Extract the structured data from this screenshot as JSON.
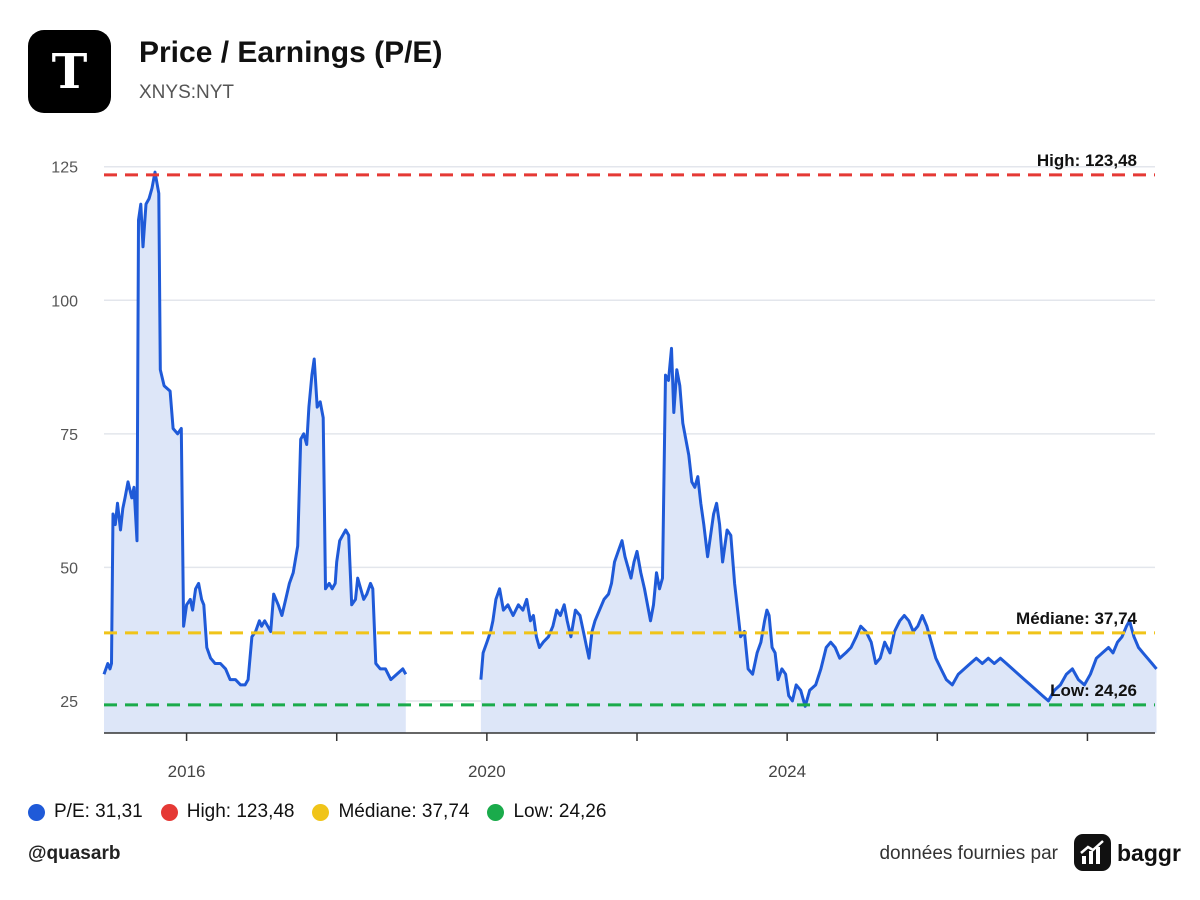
{
  "header": {
    "title": "Price / Earnings (P/E)",
    "subtitle": "XNYS:NYT",
    "logo_icon": "nyt-t-logo"
  },
  "legend": [
    {
      "label": "P/E: 31,31",
      "color": "#1f5ad8"
    },
    {
      "label": "High: 123,48",
      "color": "#e53935"
    },
    {
      "label": "Médiane: 37,74",
      "color": "#f0c419"
    },
    {
      "label": "Low: 24,26",
      "color": "#1aab4b"
    }
  ],
  "footer": {
    "handle": "@quasarb",
    "source": "données fournies par",
    "brand": "baggr",
    "brand_icon": "baggr-chart-icon"
  },
  "chart_data": {
    "type": "area",
    "series": [
      {
        "name": "P/E",
        "color": "#1f5ad8",
        "fill": "#dde6f8",
        "segments": [
          [
            [
              2014.9,
              30
            ],
            [
              2014.95,
              32
            ],
            [
              2014.98,
              31
            ],
            [
              2015.0,
              32
            ],
            [
              2015.02,
              60
            ],
            [
              2015.05,
              58
            ],
            [
              2015.08,
              62
            ],
            [
              2015.12,
              57
            ],
            [
              2015.15,
              61
            ],
            [
              2015.18,
              63
            ],
            [
              2015.22,
              66
            ],
            [
              2015.27,
              63
            ],
            [
              2015.3,
              65
            ],
            [
              2015.34,
              55
            ],
            [
              2015.36,
              115
            ],
            [
              2015.39,
              118
            ],
            [
              2015.42,
              110
            ],
            [
              2015.46,
              118
            ],
            [
              2015.5,
              119
            ],
            [
              2015.54,
              121
            ],
            [
              2015.58,
              124
            ],
            [
              2015.63,
              120
            ],
            [
              2015.65,
              87
            ],
            [
              2015.7,
              84
            ],
            [
              2015.78,
              83
            ],
            [
              2015.82,
              76
            ],
            [
              2015.88,
              75
            ],
            [
              2015.93,
              76
            ],
            [
              2015.96,
              39
            ],
            [
              2016.0,
              43
            ],
            [
              2016.05,
              44
            ],
            [
              2016.08,
              42
            ],
            [
              2016.12,
              46
            ],
            [
              2016.16,
              47
            ],
            [
              2016.2,
              44
            ],
            [
              2016.23,
              43
            ],
            [
              2016.27,
              35
            ],
            [
              2016.32,
              33
            ],
            [
              2016.38,
              32
            ],
            [
              2016.45,
              32
            ],
            [
              2016.52,
              31
            ],
            [
              2016.58,
              29
            ],
            [
              2016.65,
              29
            ],
            [
              2016.72,
              28
            ],
            [
              2016.78,
              28
            ],
            [
              2016.82,
              29
            ],
            [
              2016.87,
              37
            ],
            [
              2016.92,
              38
            ],
            [
              2016.97,
              40
            ],
            [
              2017.0,
              39
            ],
            [
              2017.04,
              40
            ],
            [
              2017.08,
              39
            ],
            [
              2017.12,
              38
            ],
            [
              2017.16,
              45
            ],
            [
              2017.22,
              43
            ],
            [
              2017.27,
              41
            ],
            [
              2017.32,
              44
            ],
            [
              2017.37,
              47
            ],
            [
              2017.42,
              49
            ],
            [
              2017.48,
              54
            ],
            [
              2017.52,
              74
            ],
            [
              2017.56,
              75
            ],
            [
              2017.6,
              73
            ],
            [
              2017.63,
              80
            ],
            [
              2017.67,
              86
            ],
            [
              2017.7,
              89
            ],
            [
              2017.74,
              80
            ],
            [
              2017.78,
              81
            ],
            [
              2017.82,
              78
            ],
            [
              2017.85,
              46
            ],
            [
              2017.9,
              47
            ],
            [
              2017.94,
              46
            ],
            [
              2017.98,
              47
            ],
            [
              2018.0,
              51
            ],
            [
              2018.04,
              55
            ],
            [
              2018.08,
              56
            ],
            [
              2018.12,
              57
            ],
            [
              2018.16,
              56
            ],
            [
              2018.2,
              43
            ],
            [
              2018.25,
              44
            ],
            [
              2018.28,
              48
            ],
            [
              2018.32,
              46
            ],
            [
              2018.36,
              44
            ],
            [
              2018.4,
              45
            ],
            [
              2018.45,
              47
            ],
            [
              2018.48,
              46
            ],
            [
              2018.52,
              32
            ],
            [
              2018.58,
              31
            ],
            [
              2018.65,
              31
            ],
            [
              2018.72,
              29
            ],
            [
              2018.8,
              30
            ],
            [
              2018.88,
              31
            ],
            [
              2018.92,
              30
            ]
          ],
          [
            [
              2019.92,
              29
            ],
            [
              2019.95,
              34
            ],
            [
              2020.0,
              36
            ],
            [
              2020.05,
              38
            ],
            [
              2020.08,
              40
            ],
            [
              2020.12,
              44
            ],
            [
              2020.17,
              46
            ],
            [
              2020.22,
              42
            ],
            [
              2020.28,
              43
            ],
            [
              2020.35,
              41
            ],
            [
              2020.42,
              43
            ],
            [
              2020.48,
              42
            ],
            [
              2020.53,
              44
            ],
            [
              2020.58,
              40
            ],
            [
              2020.62,
              41
            ],
            [
              2020.66,
              37
            ],
            [
              2020.7,
              35
            ],
            [
              2020.75,
              36
            ],
            [
              2020.82,
              37
            ],
            [
              2020.88,
              39
            ],
            [
              2020.93,
              42
            ],
            [
              2020.98,
              41
            ],
            [
              2021.03,
              43
            ],
            [
              2021.07,
              40
            ],
            [
              2021.12,
              37
            ],
            [
              2021.18,
              42
            ],
            [
              2021.24,
              41
            ],
            [
              2021.3,
              37
            ],
            [
              2021.33,
              35
            ],
            [
              2021.36,
              33
            ],
            [
              2021.4,
              38
            ],
            [
              2021.44,
              40
            ],
            [
              2021.5,
              42
            ],
            [
              2021.56,
              44
            ],
            [
              2021.62,
              45
            ],
            [
              2021.66,
              47
            ],
            [
              2021.7,
              51
            ],
            [
              2021.75,
              53
            ],
            [
              2021.8,
              55
            ],
            [
              2021.84,
              52
            ],
            [
              2021.88,
              50
            ],
            [
              2021.92,
              48
            ],
            [
              2021.96,
              51
            ],
            [
              2022.0,
              53
            ],
            [
              2022.05,
              49
            ],
            [
              2022.1,
              46
            ],
            [
              2022.14,
              43
            ],
            [
              2022.18,
              40
            ],
            [
              2022.22,
              43
            ],
            [
              2022.26,
              49
            ],
            [
              2022.3,
              46
            ],
            [
              2022.34,
              48
            ],
            [
              2022.38,
              86
            ],
            [
              2022.42,
              85
            ],
            [
              2022.46,
              91
            ],
            [
              2022.49,
              79
            ],
            [
              2022.53,
              87
            ],
            [
              2022.57,
              84
            ],
            [
              2022.61,
              77
            ],
            [
              2022.65,
              74
            ],
            [
              2022.69,
              71
            ],
            [
              2022.73,
              66
            ],
            [
              2022.77,
              65
            ],
            [
              2022.81,
              67
            ],
            [
              2022.85,
              62
            ],
            [
              2022.89,
              58
            ],
            [
              2022.94,
              52
            ],
            [
              2022.98,
              56
            ],
            [
              2023.02,
              60
            ],
            [
              2023.06,
              62
            ],
            [
              2023.1,
              58
            ],
            [
              2023.14,
              51
            ],
            [
              2023.2,
              57
            ],
            [
              2023.25,
              56
            ],
            [
              2023.3,
              47
            ],
            [
              2023.34,
              42
            ],
            [
              2023.38,
              37
            ],
            [
              2023.43,
              38
            ],
            [
              2023.48,
              31
            ],
            [
              2023.54,
              30
            ],
            [
              2023.6,
              34
            ],
            [
              2023.65,
              36
            ],
            [
              2023.7,
              40
            ],
            [
              2023.73,
              42
            ],
            [
              2023.76,
              41
            ],
            [
              2023.8,
              35
            ],
            [
              2023.84,
              34
            ],
            [
              2023.88,
              29
            ],
            [
              2023.93,
              31
            ],
            [
              2023.98,
              30
            ],
            [
              2024.02,
              26
            ],
            [
              2024.07,
              25
            ],
            [
              2024.12,
              28
            ],
            [
              2024.18,
              27
            ],
            [
              2024.24,
              24
            ],
            [
              2024.3,
              27
            ],
            [
              2024.38,
              28
            ],
            [
              2024.45,
              31
            ],
            [
              2024.52,
              35
            ],
            [
              2024.58,
              36
            ],
            [
              2024.64,
              35
            ],
            [
              2024.7,
              33
            ],
            [
              2024.78,
              34
            ],
            [
              2024.85,
              35
            ],
            [
              2024.92,
              37
            ],
            [
              2024.98,
              39
            ],
            [
              2025.05,
              38
            ],
            [
              2025.12,
              36
            ],
            [
              2025.18,
              32
            ],
            [
              2025.24,
              33
            ],
            [
              2025.3,
              36
            ],
            [
              2025.37,
              34
            ],
            [
              2025.43,
              38
            ],
            [
              2025.5,
              40
            ],
            [
              2025.56,
              41
            ],
            [
              2025.62,
              40
            ],
            [
              2025.68,
              38
            ],
            [
              2025.74,
              39
            ],
            [
              2025.8,
              41
            ],
            [
              2025.86,
              39
            ],
            [
              2025.92,
              36
            ],
            [
              2025.98,
              33
            ],
            [
              2026.05,
              31
            ],
            [
              2026.12,
              29
            ],
            [
              2026.2,
              28
            ],
            [
              2026.28,
              30
            ],
            [
              2026.36,
              31
            ],
            [
              2026.44,
              32
            ],
            [
              2026.52,
              33
            ],
            [
              2026.6,
              32
            ],
            [
              2026.68,
              33
            ],
            [
              2026.76,
              32
            ],
            [
              2026.84,
              33
            ],
            [
              2026.92,
              32
            ],
            [
              2027.0,
              31
            ],
            [
              2027.08,
              30
            ],
            [
              2027.16,
              29
            ],
            [
              2027.24,
              28
            ],
            [
              2027.32,
              27
            ],
            [
              2027.4,
              26
            ],
            [
              2027.48,
              25
            ],
            [
              2027.56,
              27
            ],
            [
              2027.64,
              28
            ],
            [
              2027.72,
              30
            ],
            [
              2027.8,
              31
            ],
            [
              2027.88,
              29
            ],
            [
              2027.96,
              28
            ],
            [
              2028.04,
              30
            ],
            [
              2028.12,
              33
            ],
            [
              2028.2,
              34
            ],
            [
              2028.28,
              35
            ],
            [
              2028.34,
              34
            ],
            [
              2028.4,
              36
            ],
            [
              2028.46,
              37
            ],
            [
              2028.52,
              39
            ],
            [
              2028.56,
              40
            ],
            [
              2028.62,
              37
            ],
            [
              2028.68,
              35
            ],
            [
              2028.74,
              34
            ],
            [
              2028.8,
              33
            ],
            [
              2028.86,
              32
            ],
            [
              2028.92,
              31
            ]
          ]
        ]
      }
    ],
    "reference_lines": [
      {
        "name": "High",
        "value": 123.48,
        "label": "High: 123,48",
        "color": "#e53935"
      },
      {
        "name": "Médiane",
        "value": 37.74,
        "label": "Médiane: 37,74",
        "color": "#f0c419"
      },
      {
        "name": "Low",
        "value": 24.26,
        "label": "Low: 24,26",
        "color": "#1aab4b"
      }
    ],
    "yaxis": {
      "ticks": [
        25,
        50,
        75,
        100,
        125
      ],
      "range": [
        19,
        130
      ]
    },
    "xaxis": {
      "range": [
        2014.9,
        2028.9
      ],
      "tick_labels": [
        "2016",
        "2020",
        "2024"
      ],
      "tick_label_values": [
        2016,
        2020,
        2024
      ],
      "minor_ticks": [
        2016,
        2018,
        2020,
        2022,
        2024,
        2026,
        2028
      ]
    },
    "grid": true
  }
}
